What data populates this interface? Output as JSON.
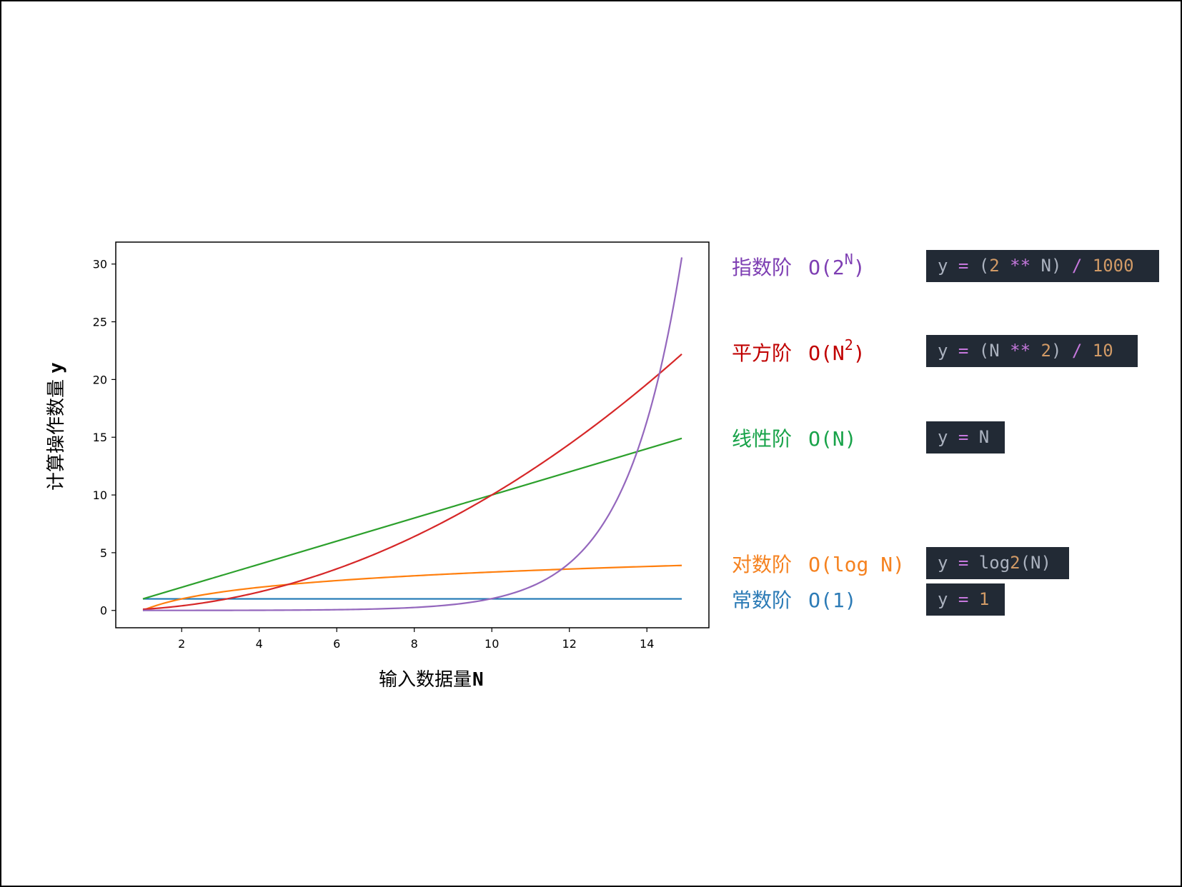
{
  "chart_data": {
    "type": "line",
    "xlabel": "输入数据量",
    "xlabel_var": "N",
    "ylabel": "计算操作数量",
    "ylabel_var": "y",
    "xlim": [
      0.3,
      15.6
    ],
    "ylim": [
      -1.5,
      31.9
    ],
    "xticks": [
      2,
      4,
      6,
      8,
      10,
      12,
      14
    ],
    "yticks": [
      0,
      5,
      10,
      15,
      20,
      25,
      30
    ],
    "series": [
      {
        "name": "常数阶",
        "order": "O(1)",
        "formula": "y = 1",
        "color": "#1f77b4",
        "x_start": 1,
        "x_end": 14.9,
        "values": [
          [
            1,
            1
          ],
          [
            14.9,
            1
          ]
        ]
      },
      {
        "name": "对数阶",
        "order": "O(log N)",
        "formula": "y = log2(N)",
        "color": "#ff7f0e",
        "x_start": 1,
        "x_end": 14.9,
        "values": [
          [
            1,
            0
          ],
          [
            2,
            1
          ],
          [
            4,
            2
          ],
          [
            8,
            3
          ],
          [
            14.9,
            3.9
          ]
        ]
      },
      {
        "name": "线性阶",
        "order": "O(N)",
        "formula": "y = N",
        "color": "#2ca02c",
        "x_start": 1,
        "x_end": 14.9,
        "values": [
          [
            1,
            1
          ],
          [
            14.9,
            14.9
          ]
        ]
      },
      {
        "name": "平方阶",
        "order": "O(N",
        "order_sup": "2",
        "order_end": ")",
        "formula": "y = (N ** 2) / 10",
        "color": "#d62728",
        "x_start": 1,
        "x_end": 14.9,
        "values": [
          [
            1,
            0.1
          ],
          [
            5,
            2.5
          ],
          [
            10,
            10
          ],
          [
            14.9,
            22.2
          ]
        ]
      },
      {
        "name": "指数阶",
        "order": "O(2",
        "order_sup": "N",
        "order_end": ")",
        "formula": "y = (2 ** N) / 1000",
        "color": "#9467bd",
        "x_start": 1,
        "x_end": 14.9,
        "values": [
          [
            1,
            0.002
          ],
          [
            10,
            1.024
          ],
          [
            12,
            4.096
          ],
          [
            14,
            16.384
          ],
          [
            14.9,
            30.6
          ]
        ]
      }
    ],
    "grid": false,
    "legend": "right"
  },
  "colors": {
    "legend_exp": "#7e3fb3",
    "legend_sq": "#c00000",
    "legend_lin": "#19a34a",
    "legend_log": "#f58220",
    "legend_const": "#2c7bb6",
    "code_bg": "#222a35"
  }
}
